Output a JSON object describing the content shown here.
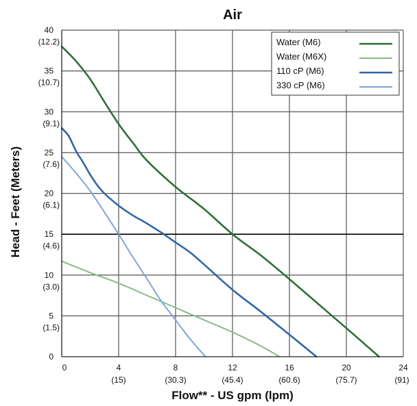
{
  "chart_data": {
    "type": "line",
    "title": "Air",
    "xlabel": "Flow** - US gpm (lpm)",
    "ylabel": "Head - Feet (Meters)",
    "xlim": [
      0,
      24
    ],
    "ylim": [
      0,
      40
    ],
    "grid": true,
    "legend_position": "top-right",
    "x_ticks": [
      {
        "value": 0,
        "label": "0",
        "sub": ""
      },
      {
        "value": 4,
        "label": "4",
        "sub": "(15)"
      },
      {
        "value": 8,
        "label": "8",
        "sub": "(30.3)"
      },
      {
        "value": 12,
        "label": "12",
        "sub": "(45.4)"
      },
      {
        "value": 16,
        "label": "16",
        "sub": "(60.6)"
      },
      {
        "value": 20,
        "label": "20",
        "sub": "(75.7)"
      },
      {
        "value": 24,
        "label": "24",
        "sub": "(91)"
      }
    ],
    "y_ticks": [
      {
        "value": 0,
        "label": "0",
        "sub": ""
      },
      {
        "value": 5,
        "label": "5",
        "sub": "(1.5)"
      },
      {
        "value": 10,
        "label": "10",
        "sub": "(3.0)"
      },
      {
        "value": 15,
        "label": "15",
        "sub": "(4.6)"
      },
      {
        "value": 20,
        "label": "20",
        "sub": "(6.1)"
      },
      {
        "value": 25,
        "label": "25",
        "sub": "(7.6)"
      },
      {
        "value": 30,
        "label": "30",
        "sub": "(9.1)"
      },
      {
        "value": 35,
        "label": "35",
        "sub": "(10.7)"
      },
      {
        "value": 40,
        "label": "40",
        "sub": "(12.2)"
      }
    ],
    "series": [
      {
        "name": "Water (M6)",
        "color": "#2e6e3a",
        "x": [
          0,
          1,
          2,
          3,
          4,
          5,
          6,
          8,
          10,
          12,
          14,
          16,
          18,
          20,
          22.3
        ],
        "y": [
          38,
          36.2,
          34,
          31.2,
          28.5,
          26.2,
          24,
          20.8,
          18.1,
          15,
          12.4,
          9.5,
          6.5,
          3.5,
          0
        ]
      },
      {
        "name": "Water (M6X)",
        "color": "#8cb98a",
        "x": [
          0,
          2,
          4,
          6,
          8,
          10,
          12,
          14,
          15.3
        ],
        "y": [
          11.7,
          10.3,
          9,
          7.5,
          6,
          4.5,
          3,
          1.3,
          0
        ]
      },
      {
        "name": "110 cP (M6)",
        "color": "#2f66a4",
        "x": [
          0,
          0.5,
          1,
          1.5,
          2,
          2.5,
          3,
          4,
          5,
          6,
          7,
          8,
          9,
          10,
          12,
          14,
          16,
          17.9
        ],
        "y": [
          28,
          27,
          25.2,
          23.8,
          22.3,
          21,
          20,
          18.5,
          17.3,
          16.3,
          15.2,
          14,
          12.8,
          11.3,
          8.2,
          5.5,
          2.7,
          0
        ]
      },
      {
        "name": "330 cP (M6)",
        "color": "#7fa7d3",
        "x": [
          0,
          1,
          2,
          3,
          4,
          5,
          6,
          7,
          8,
          9,
          10.1
        ],
        "y": [
          24.5,
          22.5,
          20.3,
          17.7,
          15,
          12.2,
          9.5,
          6.8,
          4.5,
          2.2,
          0
        ]
      }
    ]
  }
}
